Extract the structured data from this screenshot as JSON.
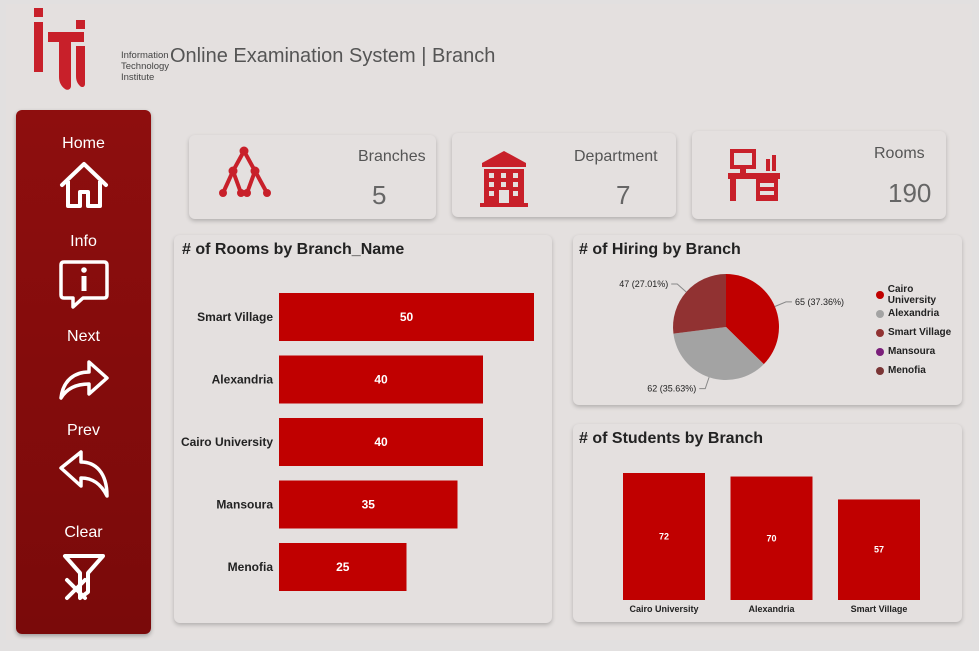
{
  "brand": {
    "logo_text": "iti",
    "org_lines": [
      "Information",
      "Technology",
      "Institute"
    ],
    "color": "#c8202a"
  },
  "header": {
    "title": "Online Examination System | Branch"
  },
  "nav": [
    {
      "label": "Home",
      "icon": "home-icon"
    },
    {
      "label": "Info",
      "icon": "info-icon"
    },
    {
      "label": "Next",
      "icon": "next-arrow-icon"
    },
    {
      "label": "Prev",
      "icon": "prev-arrow-icon"
    },
    {
      "label": "Clear",
      "icon": "clear-filter-icon"
    }
  ],
  "kpis": [
    {
      "label": "Branches",
      "value": "5",
      "icon": "hierarchy-icon"
    },
    {
      "label": "Department",
      "value": "7",
      "icon": "building-icon"
    },
    {
      "label": "Rooms",
      "value": "190",
      "icon": "desk-icon"
    }
  ],
  "colors": {
    "accent": "#c00000",
    "sidebar": "#870c0c"
  },
  "chart_data": [
    {
      "id": "rooms",
      "type": "bar",
      "orientation": "horizontal",
      "title": "# of Rooms by Branch_Name",
      "categories": [
        "Smart Village",
        "Alexandria",
        "Cairo University",
        "Mansoura",
        "Menofia"
      ],
      "values": [
        50,
        40,
        40,
        35,
        25
      ],
      "color": "#c00000",
      "xlim": [
        0,
        50
      ]
    },
    {
      "id": "hiring",
      "type": "pie",
      "title": "# of Hiring by Branch",
      "slices": [
        {
          "label": "Cairo University",
          "value": 65,
          "text": "65 (37.36%)",
          "color": "#c00000"
        },
        {
          "label": "Alexandria",
          "value": 62,
          "text": "62 (35.63%)",
          "color": "#a3a3a3"
        },
        {
          "label": "Smart Village",
          "value": 47,
          "text": "47 (27.01%)",
          "color": "#913232"
        },
        {
          "label": "Mansoura",
          "value": 0,
          "text": "",
          "color": "#7a1f7a"
        },
        {
          "label": "Menofia",
          "value": 0,
          "text": "",
          "color": "#7a3535"
        }
      ],
      "legend_position": "right"
    },
    {
      "id": "students",
      "type": "bar",
      "orientation": "vertical",
      "title": "# of Students by Branch",
      "categories": [
        "Cairo University",
        "Alexandria",
        "Smart Village"
      ],
      "values": [
        72,
        70,
        57
      ],
      "color": "#c00000",
      "ylim": [
        0,
        72
      ]
    }
  ]
}
